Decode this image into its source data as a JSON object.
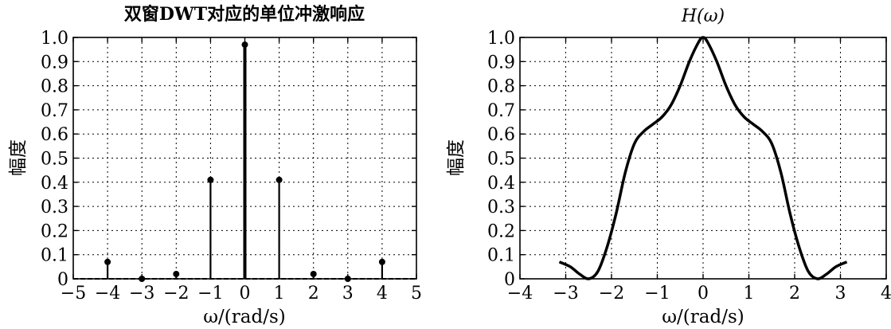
{
  "chart_data": [
    {
      "type": "stem",
      "title": "双窗DWT对应的单位冲激响应",
      "xlabel": "ω/(rad/s)",
      "ylabel": "幅度",
      "xlim": [
        -5,
        5
      ],
      "ylim": [
        0,
        1.0
      ],
      "xticks": [
        "−5",
        "−4",
        "−3",
        "−2",
        "−1",
        "0",
        "1",
        "2",
        "3",
        "4",
        "5"
      ],
      "yticks": [
        "0",
        "0.1",
        "0.2",
        "0.3",
        "0.4",
        "0.5",
        "0.6",
        "0.7",
        "0.8",
        "0.9",
        "1.0"
      ],
      "grid": true,
      "x": [
        -4,
        -3,
        -2,
        -1,
        0,
        1,
        2,
        3,
        4
      ],
      "values": [
        0.07,
        0.0,
        0.02,
        0.41,
        0.97,
        0.41,
        0.02,
        0.0,
        0.07
      ]
    },
    {
      "type": "line",
      "title": "H(ω)",
      "xlabel": "ω/(rad/s)",
      "ylabel": "幅度",
      "xlim": [
        -4,
        4
      ],
      "ylim": [
        0,
        1.0
      ],
      "xticks": [
        "−4",
        "−3",
        "−2",
        "−1",
        "0",
        "1",
        "2",
        "3",
        "4"
      ],
      "yticks": [
        "0",
        "0.1",
        "0.2",
        "0.3",
        "0.4",
        "0.5",
        "0.6",
        "0.7",
        "0.8",
        "0.9",
        "1.0"
      ],
      "grid": true,
      "x": [
        -3.14,
        -2.9,
        -2.7,
        -2.5,
        -2.3,
        -2.1,
        -1.9,
        -1.7,
        -1.5,
        -1.3,
        -1.1,
        -0.9,
        -0.7,
        -0.5,
        -0.3,
        -0.1,
        0.0,
        0.1,
        0.3,
        0.5,
        0.7,
        0.9,
        1.1,
        1.3,
        1.5,
        1.7,
        1.9,
        2.1,
        2.3,
        2.5,
        2.7,
        2.9,
        3.14
      ],
      "values": [
        0.07,
        0.05,
        0.02,
        0.0,
        0.03,
        0.13,
        0.27,
        0.44,
        0.56,
        0.61,
        0.64,
        0.67,
        0.72,
        0.8,
        0.9,
        0.98,
        1.0,
        0.98,
        0.9,
        0.8,
        0.72,
        0.67,
        0.64,
        0.61,
        0.56,
        0.44,
        0.27,
        0.13,
        0.03,
        0.0,
        0.02,
        0.05,
        0.07
      ]
    }
  ]
}
